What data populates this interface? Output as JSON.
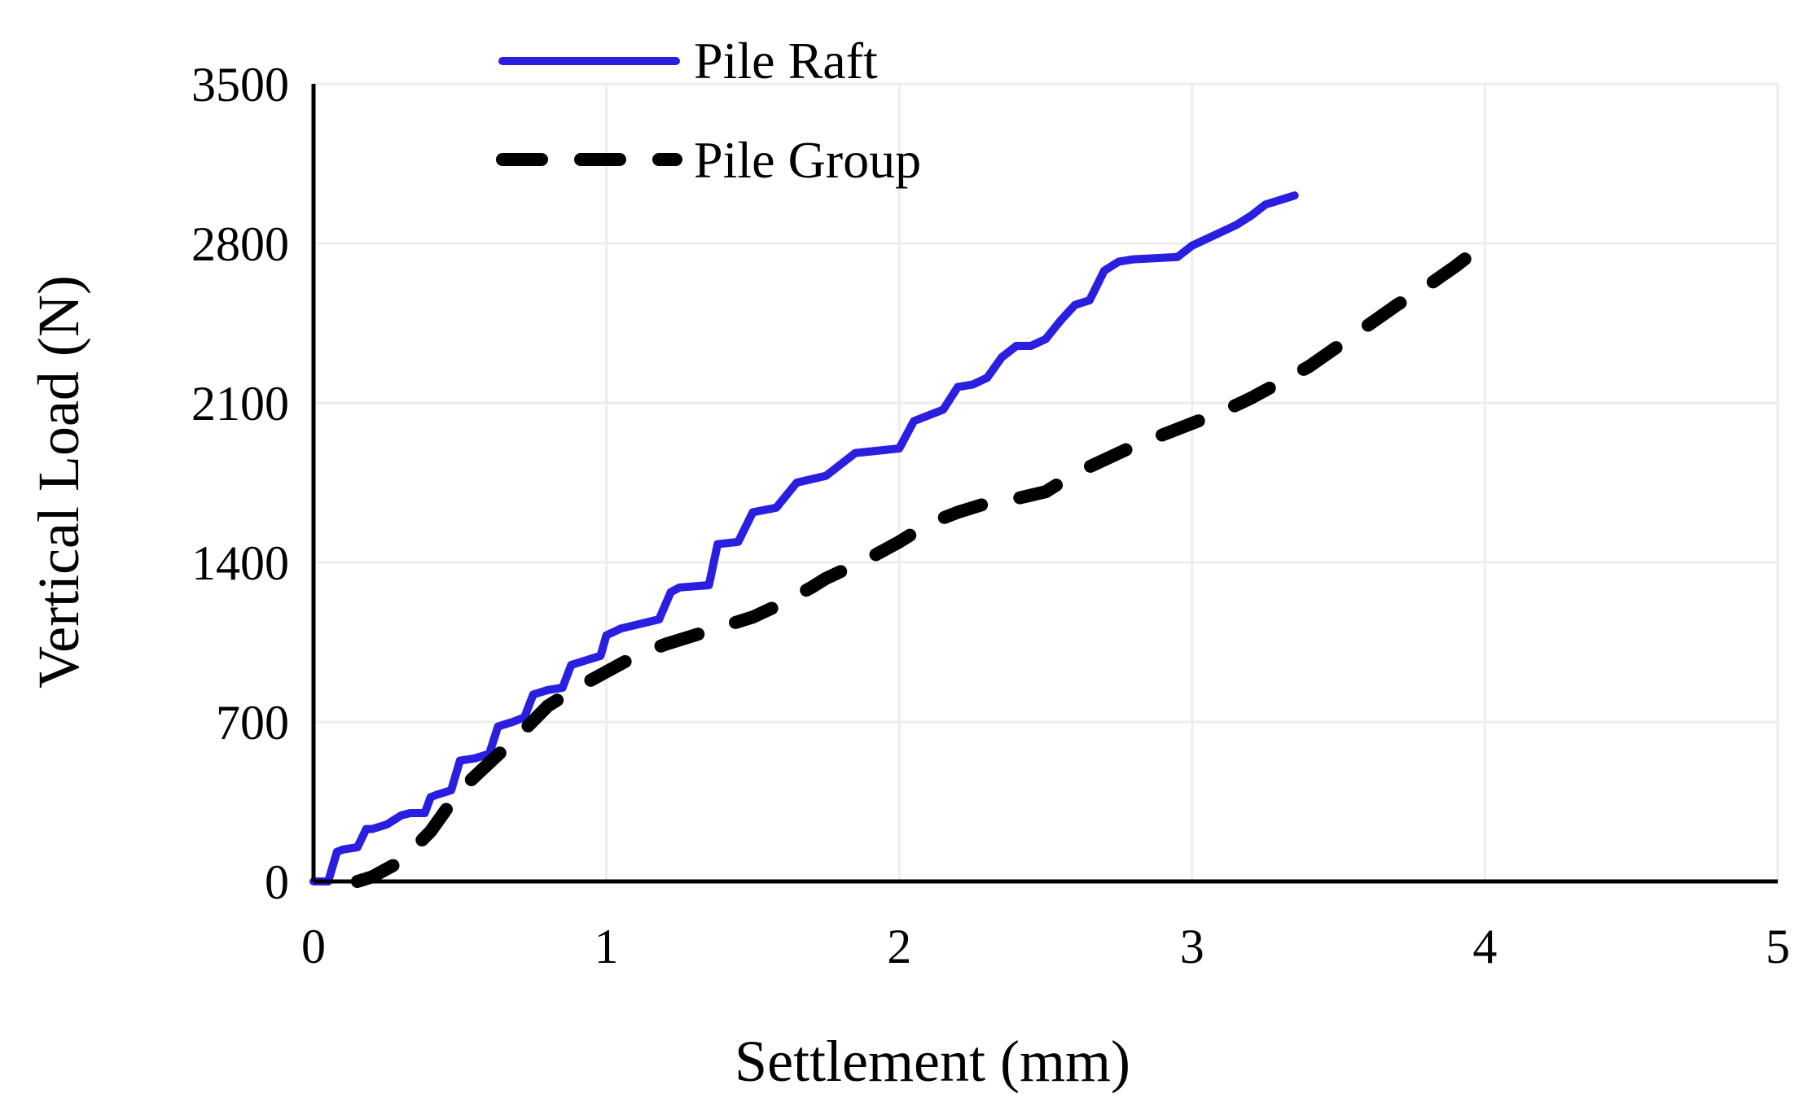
{
  "chart_data": {
    "type": "line",
    "title": "",
    "xlabel": "Settlement (mm)",
    "ylabel": "Vertical Load (N)",
    "xlim": [
      0,
      5
    ],
    "ylim": [
      0,
      3500
    ],
    "xticks": [
      "0",
      "1",
      "2",
      "3",
      "4",
      "5"
    ],
    "yticks": [
      "0",
      "700",
      "1400",
      "2100",
      "2800",
      "3500"
    ],
    "grid": true,
    "legend_position": "top-left",
    "series": [
      {
        "name": "Pile Raft",
        "color": "#2a1fe0",
        "style": "solid",
        "x": [
          0.0,
          0.05,
          0.08,
          0.1,
          0.15,
          0.18,
          0.2,
          0.25,
          0.3,
          0.33,
          0.38,
          0.4,
          0.42,
          0.47,
          0.5,
          0.55,
          0.6,
          0.63,
          0.68,
          0.72,
          0.75,
          0.8,
          0.85,
          0.88,
          0.93,
          0.98,
          1.0,
          1.05,
          1.18,
          1.22,
          1.25,
          1.35,
          1.38,
          1.45,
          1.5,
          1.58,
          1.65,
          1.75,
          1.8,
          1.85,
          2.0,
          2.05,
          2.15,
          2.2,
          2.25,
          2.3,
          2.35,
          2.4,
          2.45,
          2.5,
          2.55,
          2.6,
          2.65,
          2.7,
          2.75,
          2.8,
          2.95,
          3.0,
          3.1,
          3.15,
          3.2,
          3.25,
          3.3,
          3.35
        ],
        "y": [
          0,
          0,
          130,
          140,
          150,
          230,
          230,
          250,
          290,
          300,
          300,
          370,
          380,
          400,
          530,
          540,
          560,
          680,
          700,
          720,
          820,
          840,
          850,
          950,
          970,
          990,
          1080,
          1110,
          1150,
          1270,
          1290,
          1300,
          1480,
          1490,
          1620,
          1640,
          1750,
          1780,
          1830,
          1880,
          1900,
          2020,
          2070,
          2170,
          2180,
          2210,
          2300,
          2350,
          2350,
          2380,
          2460,
          2530,
          2550,
          2680,
          2720,
          2730,
          2740,
          2790,
          2850,
          2880,
          2920,
          2970,
          2990,
          3010
        ]
      },
      {
        "name": "Pile Group",
        "color": "#000000",
        "style": "dashed",
        "x": [
          0.15,
          0.2,
          0.3,
          0.4,
          0.5,
          0.6,
          0.7,
          0.8,
          0.9,
          1.0,
          1.1,
          1.2,
          1.3,
          1.4,
          1.5,
          1.6,
          1.7,
          1.75,
          1.8,
          1.9,
          2.0,
          2.1,
          2.2,
          2.3,
          2.4,
          2.5,
          2.6,
          2.7,
          2.8,
          2.9,
          3.0,
          3.1,
          3.2,
          3.3,
          3.4,
          3.5,
          3.6,
          3.7,
          3.8,
          3.9,
          4.0
        ],
        "y": [
          0,
          20,
          90,
          220,
          400,
          520,
          640,
          770,
          850,
          920,
          990,
          1040,
          1080,
          1120,
          1160,
          1220,
          1290,
          1330,
          1360,
          1420,
          1490,
          1570,
          1620,
          1660,
          1680,
          1710,
          1790,
          1850,
          1910,
          1960,
          2010,
          2060,
          2120,
          2190,
          2260,
          2350,
          2440,
          2530,
          2610,
          2700,
          2800
        ]
      }
    ]
  }
}
